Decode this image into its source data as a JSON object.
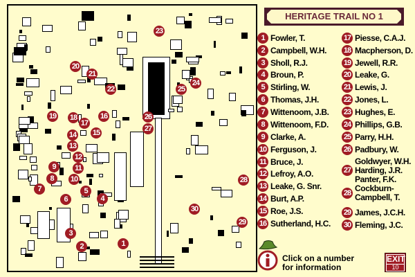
{
  "title": "HERITAGE TRAIL NO 1",
  "colors": {
    "marker": "#a01c24",
    "map_background": "#fffccc",
    "title_border": "#4a1a2a",
    "title_text": "#6a2a3a"
  },
  "markers": [
    {
      "n": "1",
      "name": "Fowler, T."
    },
    {
      "n": "2",
      "name": "Campbell, W.H."
    },
    {
      "n": "3",
      "name": "Sholl, R.J."
    },
    {
      "n": "4",
      "name": "Broun, P."
    },
    {
      "n": "5",
      "name": "Stirling, W."
    },
    {
      "n": "6",
      "name": "Thomas, J.H."
    },
    {
      "n": "7",
      "name": "Wittenoom, J.B."
    },
    {
      "n": "8",
      "name": "Wittenoom, F.D."
    },
    {
      "n": "9",
      "name": "Clarke, A."
    },
    {
      "n": "10",
      "name": "Ferguson, J."
    },
    {
      "n": "11",
      "name": "Bruce, J."
    },
    {
      "n": "12",
      "name": "Lefroy, A.O."
    },
    {
      "n": "13",
      "name": "Leake, G. Snr."
    },
    {
      "n": "14",
      "name": "Burt, A.P."
    },
    {
      "n": "15",
      "name": "Roe, J.S."
    },
    {
      "n": "16",
      "name": "Sutherland, H.C."
    },
    {
      "n": "17",
      "name": "Piesse, C.A.J."
    },
    {
      "n": "18",
      "name": "Macpherson, D."
    },
    {
      "n": "19",
      "name": "Jewell, R.R."
    },
    {
      "n": "20",
      "name": "Leake, G."
    },
    {
      "n": "21",
      "name": "Lewis, J."
    },
    {
      "n": "22",
      "name": "Jones, L."
    },
    {
      "n": "23",
      "name": "Hughes, E."
    },
    {
      "n": "24",
      "name": "Phillips, G.B."
    },
    {
      "n": "25",
      "name": "Parry, H.H."
    },
    {
      "n": "26",
      "name": "Padbury, W."
    },
    {
      "n": "27",
      "name": "Goldwyer, W.H.\nHarding, J.R.\nPanter, F.K."
    },
    {
      "n": "28",
      "name": "Cockburn-\nCampbell, T."
    },
    {
      "n": "29",
      "name": "James, J.C.H."
    },
    {
      "n": "30",
      "name": "Fleming, J.C."
    }
  ],
  "help_text": "Click on a number\nfor information",
  "info_icon": "info-with-hat-icon",
  "exit": {
    "label": "EXIT",
    "sub": "10"
  }
}
